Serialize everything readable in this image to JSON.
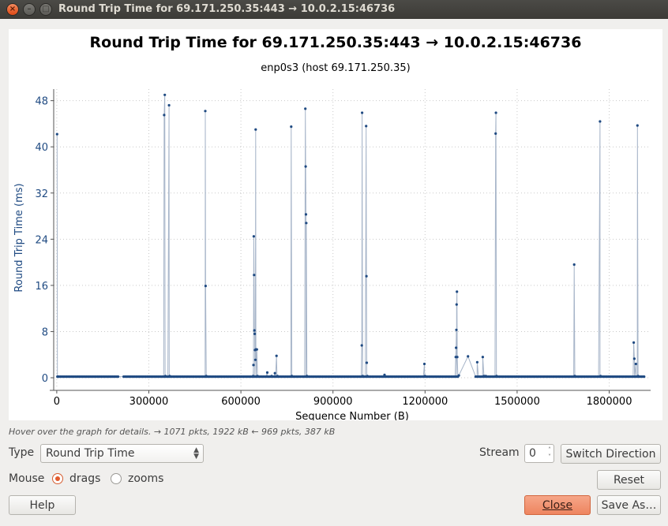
{
  "window": {
    "title": "Round Trip Time for 69.171.250.35:443 → 10.0.2.15:46736",
    "controls": {
      "close": "×",
      "minimize": "–",
      "maximize": "□"
    }
  },
  "graph": {
    "title": "Round Trip Time for 69.171.250.35:443 → 10.0.2.15:46736",
    "subtitle": "enp0s3 (host 69.171.250.35)"
  },
  "hint": "Hover over the graph for details. → 1071 pkts, 1922 kB ← 969 pkts, 387 kB",
  "controls": {
    "type_label": "Type",
    "type_value": "Round Trip Time",
    "stream_label": "Stream",
    "stream_value": "0",
    "switch_direction": "Switch Direction",
    "mouse_label": "Mouse",
    "drags_label": "drags",
    "zooms_label": "zooms",
    "mouse_mode": "drags",
    "reset": "Reset",
    "help": "Help",
    "close": "Close",
    "save_as": "Save As…"
  },
  "chart_data": {
    "type": "line",
    "title": "Round Trip Time for 69.171.250.35:443 → 10.0.2.15:46736",
    "subtitle": "enp0s3 (host 69.171.250.35)",
    "xlabel": "Sequence Number (B)",
    "ylabel": "Round Trip Time (ms)",
    "xlim": [
      -10000,
      1935000
    ],
    "ylim": [
      -1.5,
      50
    ],
    "xticks": [
      0,
      300000,
      600000,
      900000,
      1200000,
      1500000,
      1800000
    ],
    "xtick_labels": [
      "0",
      "300000",
      "600000",
      "900000",
      "1200000",
      "1500000",
      "1800000"
    ],
    "yticks": [
      0,
      8,
      16,
      24,
      32,
      40,
      48
    ],
    "ytick_labels": [
      "0",
      "8",
      "16",
      "24",
      "32",
      "40",
      "48"
    ],
    "grid": true,
    "line_color": "#a7b5c9",
    "marker_color": "#1f4a82",
    "baseline_ranges": [
      [
        2000,
        200000
      ],
      [
        218000,
        1310000
      ],
      [
        1365000,
        1915000
      ]
    ],
    "baseline_value": 0.2,
    "points": [
      [
        1000,
        42.2
      ],
      [
        3000,
        0.2
      ],
      [
        350000,
        45.5
      ],
      [
        352000,
        49
      ],
      [
        354000,
        0.3
      ],
      [
        366000,
        47.2
      ],
      [
        368000,
        0.3
      ],
      [
        484000,
        46.2
      ],
      [
        485000,
        15.9
      ],
      [
        487000,
        0.3
      ],
      [
        640000,
        0.3
      ],
      [
        641000,
        2.2
      ],
      [
        642000,
        24.5
      ],
      [
        643000,
        17.8
      ],
      [
        644000,
        8.2
      ],
      [
        645000,
        7.6
      ],
      [
        646000,
        4.8
      ],
      [
        647000,
        3.1
      ],
      [
        648000,
        43
      ],
      [
        649000,
        4.9
      ],
      [
        652000,
        4.9
      ],
      [
        654000,
        0.3
      ],
      [
        686000,
        0.9
      ],
      [
        700000,
        0.3
      ],
      [
        711000,
        0.8
      ],
      [
        716000,
        3.8
      ],
      [
        719000,
        0.3
      ],
      [
        764000,
        43.5
      ],
      [
        766000,
        0.3
      ],
      [
        810000,
        46.6
      ],
      [
        811000,
        36.6
      ],
      [
        812000,
        28.3
      ],
      [
        813000,
        26.8
      ],
      [
        815000,
        0.3
      ],
      [
        994000,
        5.6
      ],
      [
        995000,
        45.9
      ],
      [
        997000,
        0.3
      ],
      [
        1008000,
        43.6
      ],
      [
        1009000,
        17.6
      ],
      [
        1010000,
        2.6
      ],
      [
        1012000,
        0.3
      ],
      [
        1068000,
        0.5
      ],
      [
        1198000,
        2.4
      ],
      [
        1200000,
        0.3
      ],
      [
        1300000,
        3.6
      ],
      [
        1301000,
        5.2
      ],
      [
        1302000,
        8.3
      ],
      [
        1303000,
        12.7
      ],
      [
        1304000,
        14.9
      ],
      [
        1305000,
        3.6
      ],
      [
        1310000,
        0.4
      ],
      [
        1340000,
        3.7
      ],
      [
        1370000,
        2.7
      ],
      [
        1388000,
        3.6
      ],
      [
        1392000,
        0.3
      ],
      [
        1398000,
        0.3
      ],
      [
        1430000,
        42.3
      ],
      [
        1431000,
        45.9
      ],
      [
        1433000,
        0.3
      ],
      [
        1686000,
        19.6
      ],
      [
        1688000,
        0.3
      ],
      [
        1770000,
        44.4
      ],
      [
        1772000,
        0.3
      ],
      [
        1880000,
        6.1
      ],
      [
        1882000,
        3.3
      ],
      [
        1887000,
        2.4
      ],
      [
        1892000,
        43.7
      ],
      [
        1894000,
        0.3
      ]
    ]
  }
}
